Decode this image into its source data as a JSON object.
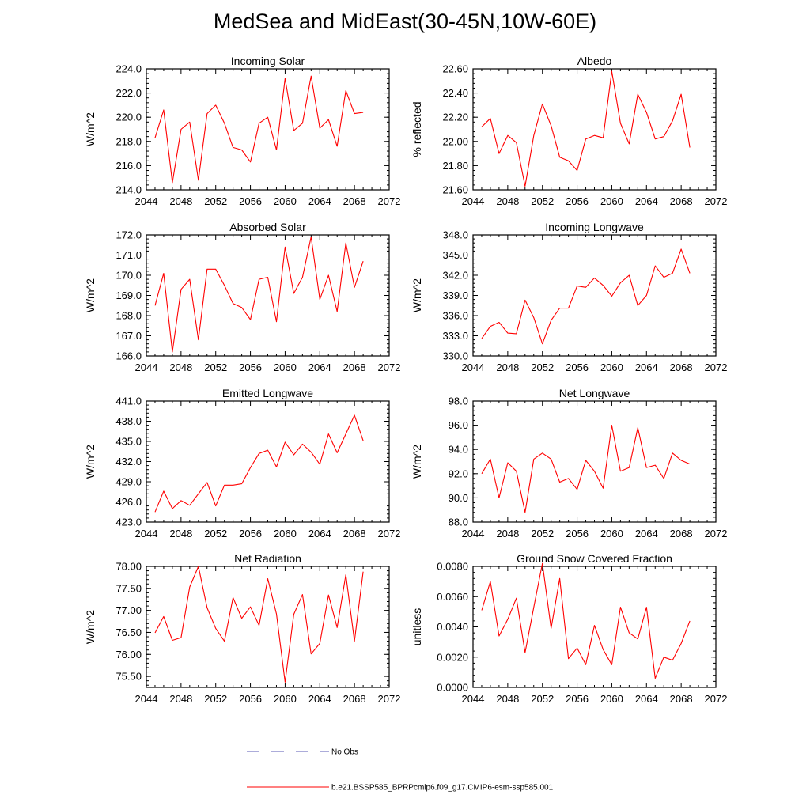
{
  "title": "MedSea and MidEast(30-45N,10W-60E)",
  "colors": {
    "model": "#ff0000",
    "obs": "#5a5ab4",
    "axis": "#000000"
  },
  "legend": [
    {
      "label": "No Obs",
      "style": "dashed",
      "color": "#5a5ab4"
    },
    {
      "label": "b.e21.BSSP585_BPRPcmip6.f09_g17.CMIP6-esm-ssp585.001",
      "style": "solid",
      "color": "#ff0000"
    }
  ],
  "chart_data": [
    {
      "type": "line",
      "title": "Incoming Solar",
      "ylabel": "W/m^2",
      "xlim": [
        2044,
        2072
      ],
      "xticks": [
        2044,
        2048,
        2052,
        2056,
        2060,
        2064,
        2068,
        2072
      ],
      "ylim": [
        214,
        224
      ],
      "yticks": [
        "214.0",
        "216.0",
        "218.0",
        "220.0",
        "222.0",
        "224.0"
      ],
      "x": [
        2045,
        2046,
        2047,
        2048,
        2049,
        2050,
        2051,
        2052,
        2053,
        2054,
        2055,
        2056,
        2057,
        2058,
        2059,
        2060,
        2061,
        2062,
        2063,
        2064,
        2065,
        2066,
        2067,
        2068,
        2069
      ],
      "series": [
        {
          "name": "b.e21.BSSP585_BPRPcmip6.f09_g17.CMIP6-esm-ssp585.001",
          "values": [
            218.3,
            220.6,
            214.6,
            219.0,
            219.6,
            214.8,
            220.3,
            221.0,
            219.5,
            217.5,
            217.3,
            216.3,
            219.5,
            220.0,
            217.3,
            223.2,
            218.9,
            219.5,
            223.4,
            219.1,
            219.8,
            217.6,
            222.2,
            220.3,
            220.4
          ]
        }
      ]
    },
    {
      "type": "line",
      "title": "Albedo",
      "ylabel": "% reflected",
      "xlim": [
        2044,
        2072
      ],
      "xticks": [
        2044,
        2048,
        2052,
        2056,
        2060,
        2064,
        2068,
        2072
      ],
      "ylim": [
        21.6,
        22.6
      ],
      "yticks": [
        "21.60",
        "21.80",
        "22.00",
        "22.20",
        "22.40",
        "22.60"
      ],
      "x": [
        2045,
        2046,
        2047,
        2048,
        2049,
        2050,
        2051,
        2052,
        2053,
        2054,
        2055,
        2056,
        2057,
        2058,
        2059,
        2060,
        2061,
        2062,
        2063,
        2064,
        2065,
        2066,
        2067,
        2068,
        2069
      ],
      "series": [
        {
          "name": "b.e21.BSSP585_BPRPcmip6.f09_g17.CMIP6-esm-ssp585.001",
          "values": [
            22.12,
            22.19,
            21.9,
            22.05,
            21.99,
            21.63,
            22.05,
            22.31,
            22.13,
            21.87,
            21.84,
            21.76,
            22.02,
            22.05,
            22.03,
            22.58,
            22.15,
            21.98,
            22.39,
            22.24,
            22.02,
            22.04,
            22.17,
            22.39,
            21.95
          ]
        }
      ]
    },
    {
      "type": "line",
      "title": "Absorbed Solar",
      "ylabel": "W/m^2",
      "xlim": [
        2044,
        2072
      ],
      "xticks": [
        2044,
        2048,
        2052,
        2056,
        2060,
        2064,
        2068,
        2072
      ],
      "ylim": [
        166,
        172
      ],
      "yticks": [
        "166.0",
        "167.0",
        "168.0",
        "169.0",
        "170.0",
        "171.0",
        "172.0"
      ],
      "x": [
        2045,
        2046,
        2047,
        2048,
        2049,
        2050,
        2051,
        2052,
        2053,
        2054,
        2055,
        2056,
        2057,
        2058,
        2059,
        2060,
        2061,
        2062,
        2063,
        2064,
        2065,
        2066,
        2067,
        2068,
        2069
      ],
      "series": [
        {
          "name": "b.e21.BSSP585_BPRPcmip6.f09_g17.CMIP6-esm-ssp585.001",
          "values": [
            168.5,
            170.1,
            166.2,
            169.3,
            169.8,
            166.8,
            170.3,
            170.3,
            169.5,
            168.6,
            168.4,
            167.8,
            169.8,
            169.9,
            167.7,
            171.4,
            169.1,
            169.9,
            171.9,
            168.8,
            170.0,
            168.2,
            171.6,
            169.4,
            170.7
          ]
        }
      ]
    },
    {
      "type": "line",
      "title": "Incoming Longwave",
      "ylabel": "W/m^2",
      "xlim": [
        2044,
        2072
      ],
      "xticks": [
        2044,
        2048,
        2052,
        2056,
        2060,
        2064,
        2068,
        2072
      ],
      "ylim": [
        330,
        348
      ],
      "yticks": [
        "330.0",
        "333.0",
        "336.0",
        "339.0",
        "342.0",
        "345.0",
        "348.0"
      ],
      "x": [
        2045,
        2046,
        2047,
        2048,
        2049,
        2050,
        2051,
        2052,
        2053,
        2054,
        2055,
        2056,
        2057,
        2058,
        2059,
        2060,
        2061,
        2062,
        2063,
        2064,
        2065,
        2066,
        2067,
        2068,
        2069
      ],
      "series": [
        {
          "name": "b.e21.BSSP585_BPRPcmip6.f09_g17.CMIP6-esm-ssp585.001",
          "values": [
            332.6,
            334.4,
            335.0,
            333.4,
            333.3,
            338.3,
            335.7,
            331.8,
            335.3,
            337.1,
            337.1,
            340.4,
            340.2,
            341.6,
            340.5,
            338.9,
            340.9,
            342.0,
            337.5,
            339.0,
            343.4,
            341.7,
            342.3,
            345.9,
            342.3
          ]
        }
      ]
    },
    {
      "type": "line",
      "title": "Emitted Longwave",
      "ylabel": "W/m^2",
      "xlim": [
        2044,
        2072
      ],
      "xticks": [
        2044,
        2048,
        2052,
        2056,
        2060,
        2064,
        2068,
        2072
      ],
      "ylim": [
        423,
        441
      ],
      "yticks": [
        "423.0",
        "426.0",
        "429.0",
        "432.0",
        "435.0",
        "438.0",
        "441.0"
      ],
      "x": [
        2045,
        2046,
        2047,
        2048,
        2049,
        2050,
        2051,
        2052,
        2053,
        2054,
        2055,
        2056,
        2057,
        2058,
        2059,
        2060,
        2061,
        2062,
        2063,
        2064,
        2065,
        2066,
        2067,
        2068,
        2069
      ],
      "series": [
        {
          "name": "b.e21.BSSP585_BPRPcmip6.f09_g17.CMIP6-esm-ssp585.001",
          "values": [
            424.5,
            427.6,
            425.0,
            426.2,
            425.5,
            427.2,
            428.9,
            425.4,
            428.5,
            428.5,
            428.7,
            431.1,
            433.2,
            433.7,
            431.2,
            434.9,
            433.0,
            434.6,
            433.4,
            431.6,
            436.1,
            433.3,
            436.1,
            438.9,
            435.1
          ]
        }
      ]
    },
    {
      "type": "line",
      "title": "Net Longwave",
      "ylabel": "W/m^2",
      "xlim": [
        2044,
        2072
      ],
      "xticks": [
        2044,
        2048,
        2052,
        2056,
        2060,
        2064,
        2068,
        2072
      ],
      "ylim": [
        88,
        98
      ],
      "yticks": [
        "88.0",
        "90.0",
        "92.0",
        "94.0",
        "96.0",
        "98.0"
      ],
      "x": [
        2045,
        2046,
        2047,
        2048,
        2049,
        2050,
        2051,
        2052,
        2053,
        2054,
        2055,
        2056,
        2057,
        2058,
        2059,
        2060,
        2061,
        2062,
        2063,
        2064,
        2065,
        2066,
        2067,
        2068,
        2069
      ],
      "series": [
        {
          "name": "b.e21.BSSP585_BPRPcmip6.f09_g17.CMIP6-esm-ssp585.001",
          "values": [
            92.0,
            93.2,
            90.0,
            92.9,
            92.2,
            88.8,
            93.2,
            93.7,
            93.2,
            91.3,
            91.6,
            90.7,
            93.1,
            92.2,
            90.8,
            96.0,
            92.2,
            92.5,
            95.8,
            92.5,
            92.7,
            91.6,
            93.7,
            93.1,
            92.8
          ]
        }
      ]
    },
    {
      "type": "line",
      "title": "Net Radiation",
      "ylabel": "W/m^2",
      "xlim": [
        2044,
        2072
      ],
      "xticks": [
        2044,
        2048,
        2052,
        2056,
        2060,
        2064,
        2068,
        2072
      ],
      "ylim": [
        75.25,
        78
      ],
      "yticks": [
        "75.50",
        "76.00",
        "76.50",
        "77.00",
        "77.50",
        "78.00"
      ],
      "x": [
        2045,
        2046,
        2047,
        2048,
        2049,
        2050,
        2051,
        2052,
        2053,
        2054,
        2055,
        2056,
        2057,
        2058,
        2059,
        2060,
        2061,
        2062,
        2063,
        2064,
        2065,
        2066,
        2067,
        2068,
        2069
      ],
      "series": [
        {
          "name": "b.e21.BSSP585_BPRPcmip6.f09_g17.CMIP6-esm-ssp585.001",
          "values": [
            76.49,
            76.86,
            76.32,
            76.38,
            77.53,
            78.0,
            77.06,
            76.59,
            76.3,
            77.29,
            76.82,
            77.08,
            76.66,
            77.72,
            76.92,
            75.37,
            76.91,
            77.36,
            76.01,
            76.25,
            77.35,
            76.61,
            77.81,
            76.3,
            77.88
          ]
        }
      ]
    },
    {
      "type": "line",
      "title": "Ground Snow Covered Fraction",
      "ylabel": "unitless",
      "xlim": [
        2044,
        2072
      ],
      "xticks": [
        2044,
        2048,
        2052,
        2056,
        2060,
        2064,
        2068,
        2072
      ],
      "ylim": [
        0,
        0.008
      ],
      "yticks": [
        "0.0000",
        "0.0020",
        "0.0040",
        "0.0060",
        "0.0080"
      ],
      "x": [
        2045,
        2046,
        2047,
        2048,
        2049,
        2050,
        2051,
        2052,
        2053,
        2054,
        2055,
        2056,
        2057,
        2058,
        2059,
        2060,
        2061,
        2062,
        2063,
        2064,
        2065,
        2066,
        2067,
        2068,
        2069
      ],
      "series": [
        {
          "name": "b.e21.BSSP585_BPRPcmip6.f09_g17.CMIP6-esm-ssp585.001",
          "values": [
            0.0051,
            0.007,
            0.0034,
            0.0045,
            0.0059,
            0.0023,
            0.0053,
            0.0082,
            0.0039,
            0.0072,
            0.0019,
            0.0026,
            0.0015,
            0.0041,
            0.0025,
            0.0015,
            0.0053,
            0.0036,
            0.0032,
            0.0053,
            0.0006,
            0.002,
            0.0018,
            0.0029,
            0.0044
          ]
        }
      ]
    }
  ]
}
